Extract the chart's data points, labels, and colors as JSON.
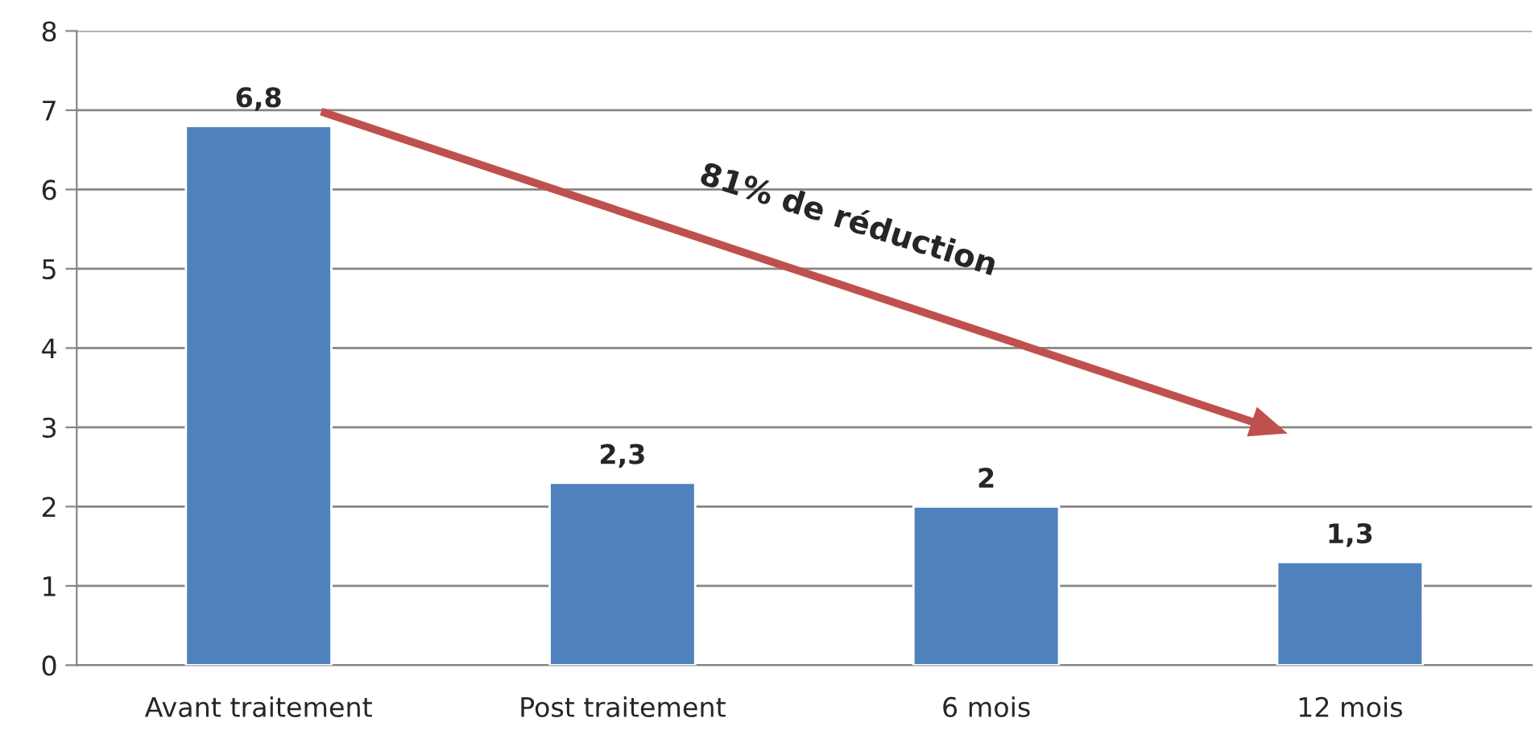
{
  "chart_data": {
    "type": "bar",
    "categories": [
      "Avant traitement",
      "Post traitement",
      "6 mois",
      "12 mois"
    ],
    "values": [
      6.8,
      2.3,
      2,
      1.3
    ],
    "value_labels": [
      "6,8",
      "2,3",
      "2",
      "1,3"
    ],
    "color": "#4f81bd",
    "ylim": [
      0,
      8
    ],
    "yticks": [
      0,
      1,
      2,
      3,
      4,
      5,
      6,
      7,
      8
    ],
    "grid": "y",
    "annotations": [
      "81% de réduction"
    ]
  }
}
